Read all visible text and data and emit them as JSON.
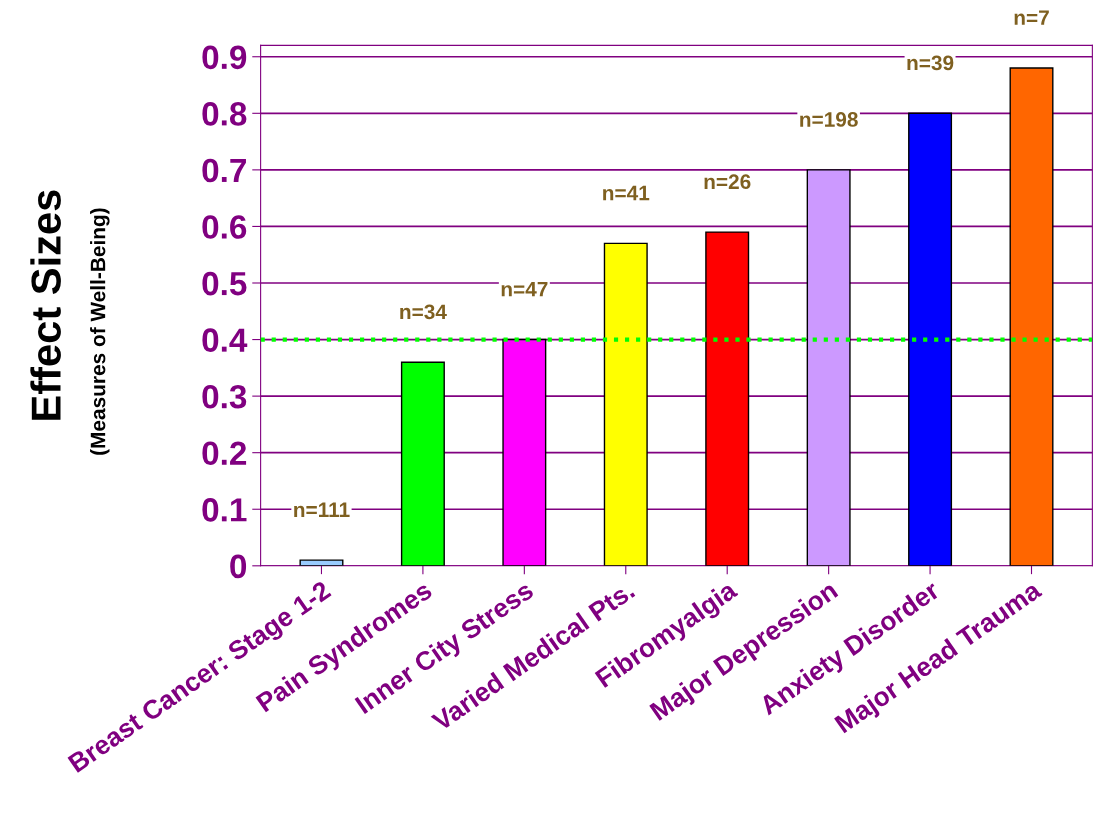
{
  "chart_data": {
    "type": "bar",
    "ylabel": "Effect Sizes",
    "annotations": [
      "(Measures of Well-Being)",
      {
        "text": "n=111",
        "x": "Breast Cancer: Stage 1-2",
        "y": 0.01
      },
      {
        "text": "n=34",
        "x": "Pain Syndromes",
        "y": 0.36
      },
      {
        "text": "n=47",
        "x": "Inner City Stress",
        "y": 0.4
      },
      {
        "text": "n=41",
        "x": "Varied Medical Pts.",
        "y": 0.57
      },
      {
        "text": "n=26",
        "x": "Fibromyalgia",
        "y": 0.59
      },
      {
        "text": "n=198",
        "x": "Major Depression",
        "y": 0.7
      },
      {
        "text": "n=39",
        "x": "Anxiety Disorder",
        "y": 0.8
      },
      {
        "text": "n=7",
        "x": "Major Head Trauma",
        "y": 0.88
      }
    ],
    "categories": [
      "Breast Cancer: Stage 1-2",
      "Pain Syndromes",
      "Inner City Stress",
      "Varied Medical Pts.",
      "Fibromyalgia",
      "Major Depression",
      "Anxiety Disorder",
      "Major Head Trauma"
    ],
    "values": [
      0.01,
      0.36,
      0.4,
      0.57,
      0.59,
      0.7,
      0.8,
      0.88
    ],
    "colors": [
      "#99ccff",
      "#00ff00",
      "#ff00ff",
      "#ffff00",
      "#ff0000",
      "#cc99ff",
      "#0000ff",
      "#ff6600"
    ],
    "ylim": [
      0,
      0.92
    ],
    "yticks": [
      0,
      0.1,
      0.2,
      0.3,
      0.4,
      0.5,
      0.6,
      0.7,
      0.8,
      0.9
    ],
    "grid": "y",
    "legend": false,
    "ref_lines": [
      {
        "axis": "y",
        "value": 0.4,
        "color": "#00ff00",
        "line_style": "dotted"
      }
    ]
  }
}
